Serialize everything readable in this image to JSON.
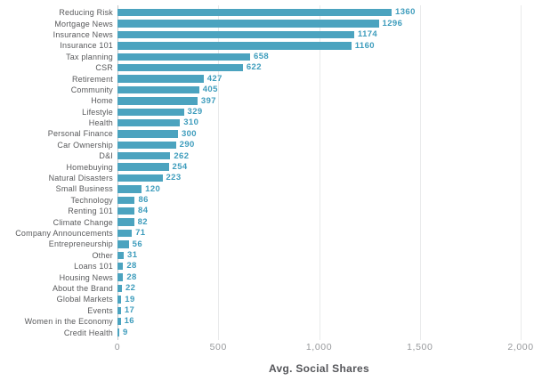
{
  "chart_data": {
    "type": "bar",
    "orientation": "horizontal",
    "title": "",
    "xlabel": "Avg. Social Shares",
    "ylabel": "",
    "xlim": [
      0,
      2000
    ],
    "grid": "vertical-only",
    "legend": "none",
    "bar_color": "#4BA3BF",
    "value_label_color": "#3D9CBC",
    "category_label_color": "#58595b",
    "xticks": [
      {
        "value": 0,
        "label": "0"
      },
      {
        "value": 500,
        "label": "500"
      },
      {
        "value": 1000,
        "label": "1,000"
      },
      {
        "value": 1500,
        "label": "1,500"
      },
      {
        "value": 2000,
        "label": "2,000"
      }
    ],
    "categories": [
      "Reducing Risk",
      "Mortgage News",
      "Insurance News",
      "Insurance 101",
      "Tax planning",
      "CSR",
      "Retirement",
      "Community",
      "Home",
      "Lifestyle",
      "Health",
      "Personal Finance",
      "Car Ownership",
      "D&I",
      "Homebuying",
      "Natural Disasters",
      "Small Business",
      "Technology",
      "Renting 101",
      "Climate Change",
      "Company Announcements",
      "Entrepreneurship",
      "Other",
      "Loans 101",
      "Housing News",
      "About the Brand",
      "Global Markets",
      "Events",
      "Women in the Economy",
      "Credit Health"
    ],
    "values": [
      1360,
      1296,
      1174,
      1160,
      658,
      622,
      427,
      405,
      397,
      329,
      310,
      300,
      290,
      262,
      254,
      223,
      120,
      86,
      84,
      82,
      71,
      56,
      31,
      28,
      28,
      22,
      19,
      17,
      16,
      9
    ]
  }
}
